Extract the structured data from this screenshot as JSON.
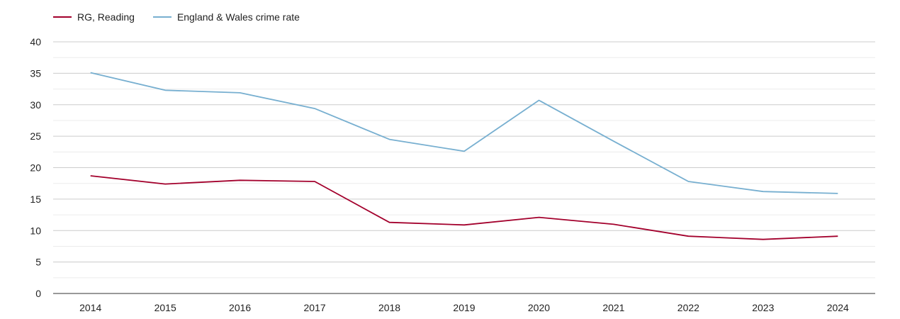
{
  "chart_data": {
    "type": "line",
    "title": "",
    "xlabel": "",
    "ylabel": "",
    "categories": [
      "2014",
      "2015",
      "2016",
      "2017",
      "2018",
      "2019",
      "2020",
      "2021",
      "2022",
      "2023",
      "2024"
    ],
    "ylim": [
      0,
      40
    ],
    "yticks": [
      0,
      5,
      10,
      15,
      20,
      25,
      30,
      35,
      40
    ],
    "grid": true,
    "legend_position": "top-left",
    "series": [
      {
        "name": "RG, Reading",
        "color": "#a3002c",
        "values": [
          18.7,
          17.4,
          18.0,
          17.8,
          11.3,
          10.9,
          12.1,
          11.0,
          9.1,
          8.6,
          9.1
        ]
      },
      {
        "name": "England & Wales crime rate",
        "color": "#77afd0",
        "values": [
          35.1,
          32.3,
          31.9,
          29.4,
          24.5,
          22.6,
          30.7,
          24.2,
          17.8,
          16.2,
          15.9
        ]
      }
    ]
  }
}
